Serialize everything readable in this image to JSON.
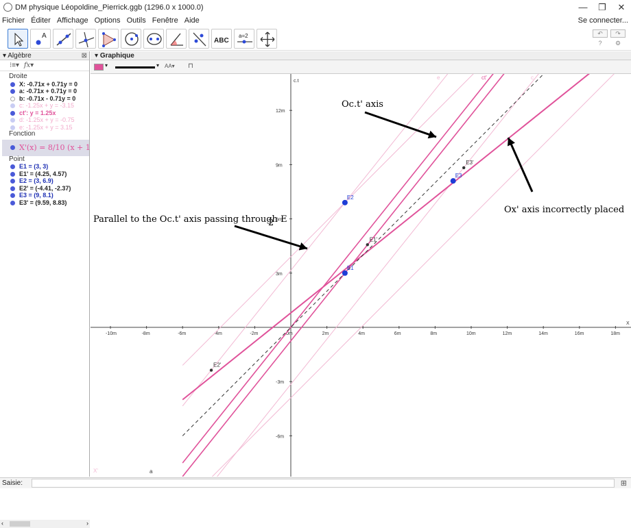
{
  "window": {
    "title": "DM physique Léopoldine_Pierrick.ggb (1296.0 x 1000.0)",
    "min": "—",
    "restore": "❐",
    "close": "✕"
  },
  "menu": {
    "items": [
      "Fichier",
      "Éditer",
      "Affichage",
      "Options",
      "Outils",
      "Fenêtre",
      "Aide"
    ],
    "login": "Se connecter..."
  },
  "toolbar": {
    "tools": [
      "move-tool",
      "point-tool",
      "line-tool",
      "perpendicular-tool",
      "polygon-tool",
      "circle-tool",
      "ellipse-tool",
      "angle-tool",
      "reflect-tool",
      "text-tool",
      "slider-tool",
      "move-view-tool"
    ],
    "text_tool_label": "ABC",
    "slider_label": "a=2",
    "undo": "↶",
    "redo": "↷",
    "help": "?",
    "settings": "⚙"
  },
  "algebra": {
    "header": "Algèbre",
    "groups": [
      {
        "title": "Droite",
        "items": [
          {
            "text": "X: -0.71x + 0.71y = 0",
            "style": "dark",
            "dot": "on"
          },
          {
            "text": "a: -0.71x + 0.71y = 0",
            "style": "dark",
            "dot": "on"
          },
          {
            "text": "b: -0.71x - 0.71y = 0",
            "style": "dark",
            "dot": "off"
          },
          {
            "text": "c: -1.25x + y = -3.15",
            "style": "faded",
            "dot": "on"
          },
          {
            "text": "ct': y = 1.25x",
            "style": "pink",
            "dot": "on"
          },
          {
            "text": "d: -1.25x + y = -0.75",
            "style": "faded",
            "dot": "on"
          },
          {
            "text": "e: -1.25x + y = 3.15",
            "style": "faded",
            "dot": "on"
          }
        ]
      },
      {
        "title": "Fonction",
        "items": []
      },
      {
        "title": "Point",
        "items": [
          {
            "text": "E1 = (3, 3)",
            "style": "blue",
            "dot": "on"
          },
          {
            "text": "E1' = (4.25, 4.57)",
            "style": "dark",
            "dot": "on"
          },
          {
            "text": "E2 = (3, 6.9)",
            "style": "blue",
            "dot": "on"
          },
          {
            "text": "E2' = (-4.41, -2.37)",
            "style": "dark",
            "dot": "on"
          },
          {
            "text": "E3 = (9, 8.1)",
            "style": "blue",
            "dot": "on"
          },
          {
            "text": "E3' = (9.59, 8.83)",
            "style": "dark",
            "dot": "on"
          }
        ]
      }
    ],
    "function_text": "X'(x) = 8/10 (x + 1"
  },
  "graphics": {
    "header": "Graphique",
    "axis_x_label": "X",
    "axis_y_label": "c.t",
    "x_ticks": [
      "-10m",
      "-8m",
      "-6m",
      "-4m",
      "-2m",
      "0m",
      "2m",
      "4m",
      "6m",
      "8m",
      "10m",
      "12m",
      "14m",
      "16m",
      "18m"
    ],
    "y_ticks": [
      "12m",
      "9m",
      "6m",
      "3m",
      "-3m",
      "-6m"
    ],
    "line_labels": [
      "ct'",
      "c",
      "e",
      "a",
      "d",
      "X'"
    ],
    "points": [
      {
        "name": "E1",
        "x": 3,
        "y": 3,
        "kind": "primary"
      },
      {
        "name": "E1'",
        "x": 4.25,
        "y": 4.57,
        "kind": "secondary"
      },
      {
        "name": "E2",
        "x": 3,
        "y": 6.9,
        "kind": "primary"
      },
      {
        "name": "E2'",
        "x": -4.41,
        "y": -2.37,
        "kind": "secondary"
      },
      {
        "name": "E3",
        "x": 9,
        "y": 8.1,
        "kind": "primary"
      },
      {
        "name": "E3'",
        "x": 9.59,
        "y": 8.83,
        "kind": "secondary"
      }
    ],
    "annotations": {
      "oct_axis": "Oc.t' axis",
      "ox_axis": "Ox' axis incorrectly placed",
      "parallel": "Parallel to the Oc.t' axis passing through E",
      "parallel_sub": "2"
    }
  },
  "input": {
    "label": "Saisie:",
    "keyboard_icon": "⊞"
  },
  "colors": {
    "pink": "#e0529a",
    "pink_faded": "#f2b9d3",
    "point_blue": "#1e3dd6",
    "point_dark": "#333333"
  }
}
